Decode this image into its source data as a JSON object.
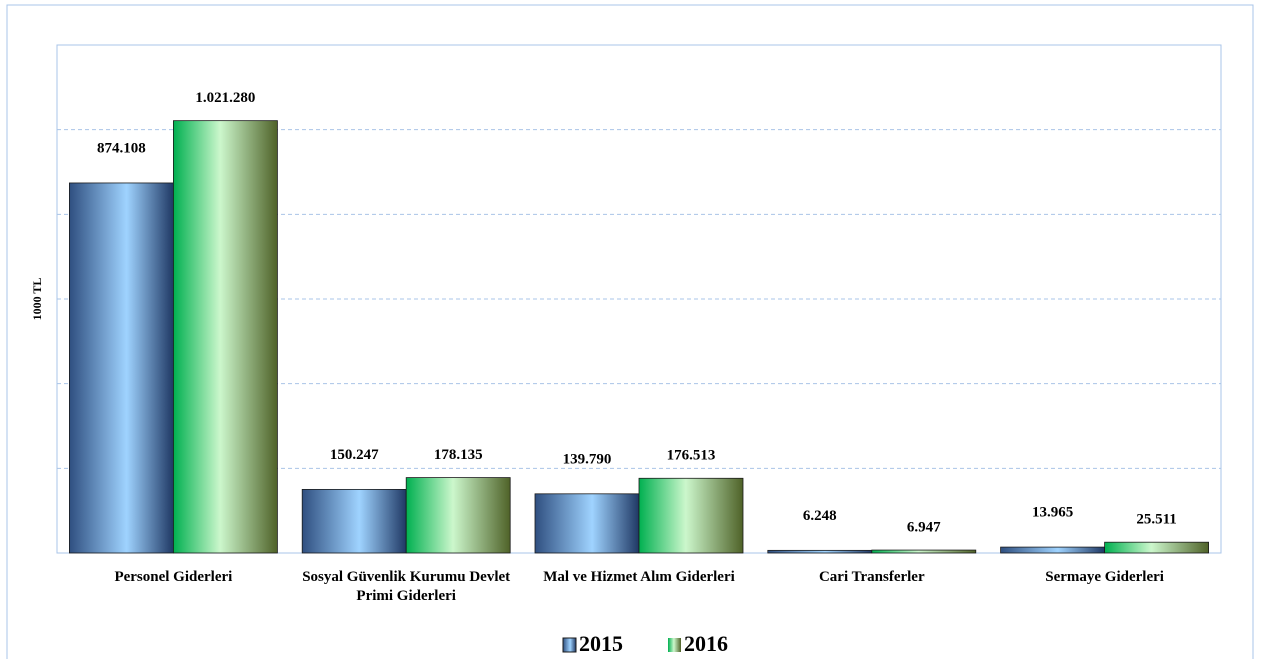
{
  "chart_data": {
    "type": "bar",
    "y_label": "1000 TL",
    "categories": [
      "Personel Giderleri",
      "Sosyal Güvenlik Kurumu Devlet Primi Giderleri",
      "Mal ve Hizmet Alım Giderleri",
      "Cari Transferler",
      "Sermaye Giderleri"
    ],
    "series": [
      {
        "name": "2015",
        "color": "#4f81bd",
        "values": [
          874108,
          150247,
          139790,
          6248,
          13965
        ],
        "value_labels": [
          "874.108",
          "150.247",
          "139.790",
          "6.248",
          "13.965"
        ]
      },
      {
        "name": "2016",
        "color": "#00b050",
        "values": [
          1021280,
          178135,
          176513,
          6947,
          25511
        ],
        "value_labels": [
          "1.021.280",
          "178.135",
          "176.513",
          "6.947",
          "25.511"
        ]
      }
    ],
    "ylim": [
      0,
      1200000
    ],
    "yticks": [
      0,
      200000,
      400000,
      600000,
      800000,
      1000000
    ],
    "grid": true
  }
}
